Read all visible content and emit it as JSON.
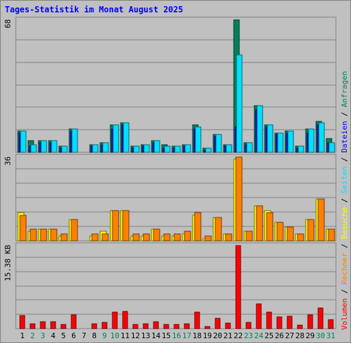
{
  "chart_data": {
    "type": "bar",
    "title": "Tages-Statistik im Monat August 2025",
    "categories": [
      "1",
      "2",
      "3",
      "4",
      "5",
      "6",
      "7",
      "8",
      "9",
      "10",
      "11",
      "12",
      "13",
      "14",
      "15",
      "16",
      "17",
      "18",
      "19",
      "20",
      "21",
      "22",
      "23",
      "24",
      "25",
      "26",
      "27",
      "28",
      "29",
      "30",
      "31"
    ],
    "weekend_days": [
      2,
      3,
      9,
      10,
      16,
      17,
      23,
      24,
      30,
      31
    ],
    "panels": [
      {
        "id": "requests-files",
        "max_label": "68",
        "ylim": [
          0,
          68
        ],
        "series": [
          {
            "name": "Anfragen",
            "color": "#00805c",
            "values": [
              11,
              6,
              6,
              6,
              3,
              12,
              0,
              4,
              5,
              14,
              15,
              3,
              4,
              6,
              4,
              3,
              4,
              14,
              2,
              9,
              4,
              68,
              5,
              24,
              14,
              10,
              11,
              3,
              12,
              16,
              7
            ]
          },
          {
            "name": "Dateien",
            "color": "#0000ff",
            "values": [
              10,
              3,
              5,
              5,
              2,
              11,
              0,
              3,
              4,
              12,
              14,
              2,
              3,
              5,
              2,
              2,
              3,
              12,
              1,
              8,
              3,
              13,
              4,
              22,
              13,
              9,
              10,
              2,
              10,
              14,
              5
            ]
          },
          {
            "name": "Seiten",
            "color": "#00e0ff",
            "values": [
              11,
              4,
              6,
              6,
              3,
              12,
              0,
              4,
              5,
              14,
              15,
              3,
              4,
              6,
              3,
              3,
              4,
              13,
              2,
              9,
              4,
              50,
              5,
              24,
              14,
              10,
              11,
              3,
              12,
              15,
              5
            ]
          }
        ]
      },
      {
        "id": "visits-hosts",
        "max_label": "36",
        "ylim": [
          0,
          36
        ],
        "series": [
          {
            "name": "Besuche",
            "color": "#ffff00",
            "values": [
              12,
              4,
              5,
              5,
              2,
              9,
              0,
              2,
              4,
              13,
              13,
              2,
              2,
              5,
              2,
              2,
              3,
              11,
              1,
              10,
              3,
              35,
              4,
              15,
              13,
              8,
              6,
              3,
              9,
              18,
              5
            ]
          },
          {
            "name": "Rechner",
            "color": "#ff8000",
            "values": [
              11,
              5,
              5,
              5,
              3,
              9,
              0,
              3,
              3,
              13,
              13,
              3,
              3,
              5,
              3,
              3,
              4,
              12,
              2,
              10,
              3,
              36,
              4,
              15,
              12,
              8,
              6,
              3,
              9,
              18,
              5
            ]
          }
        ]
      },
      {
        "id": "volume",
        "max_label": "15.38 KB",
        "ylim": [
          0,
          15.38
        ],
        "series": [
          {
            "name": "Volumen",
            "color": "#ff0000",
            "values": [
              2.4,
              0.9,
              1.3,
              1.3,
              0.7,
              2.6,
              0,
              0.9,
              1.2,
              3.1,
              3.2,
              0.7,
              0.9,
              1.3,
              0.8,
              0.7,
              0.9,
              3.0,
              0.4,
              1.9,
              1.0,
              15.38,
              1.1,
              4.6,
              3.1,
              2.2,
              2.3,
              0.6,
              2.6,
              3.8,
              1.6
            ]
          }
        ]
      }
    ],
    "legend": [
      {
        "name": "Volumen",
        "color": "#ff0000"
      },
      {
        "name": "Rechner",
        "color": "#ff8000"
      },
      {
        "name": "Besuche",
        "color": "#ffff00"
      },
      {
        "name": "Seiten",
        "color": "#00e0ff"
      },
      {
        "name": "Dateien",
        "color": "#0000ff"
      },
      {
        "name": "Anfragen",
        "color": "#00805c"
      }
    ],
    "legend_separator": " / ",
    "legend_position": "right, vertical",
    "colors": {
      "background": "#c0c0c0",
      "weekday_label": "#000000",
      "weekend_label": "#00805c",
      "grid": "#808080"
    }
  }
}
